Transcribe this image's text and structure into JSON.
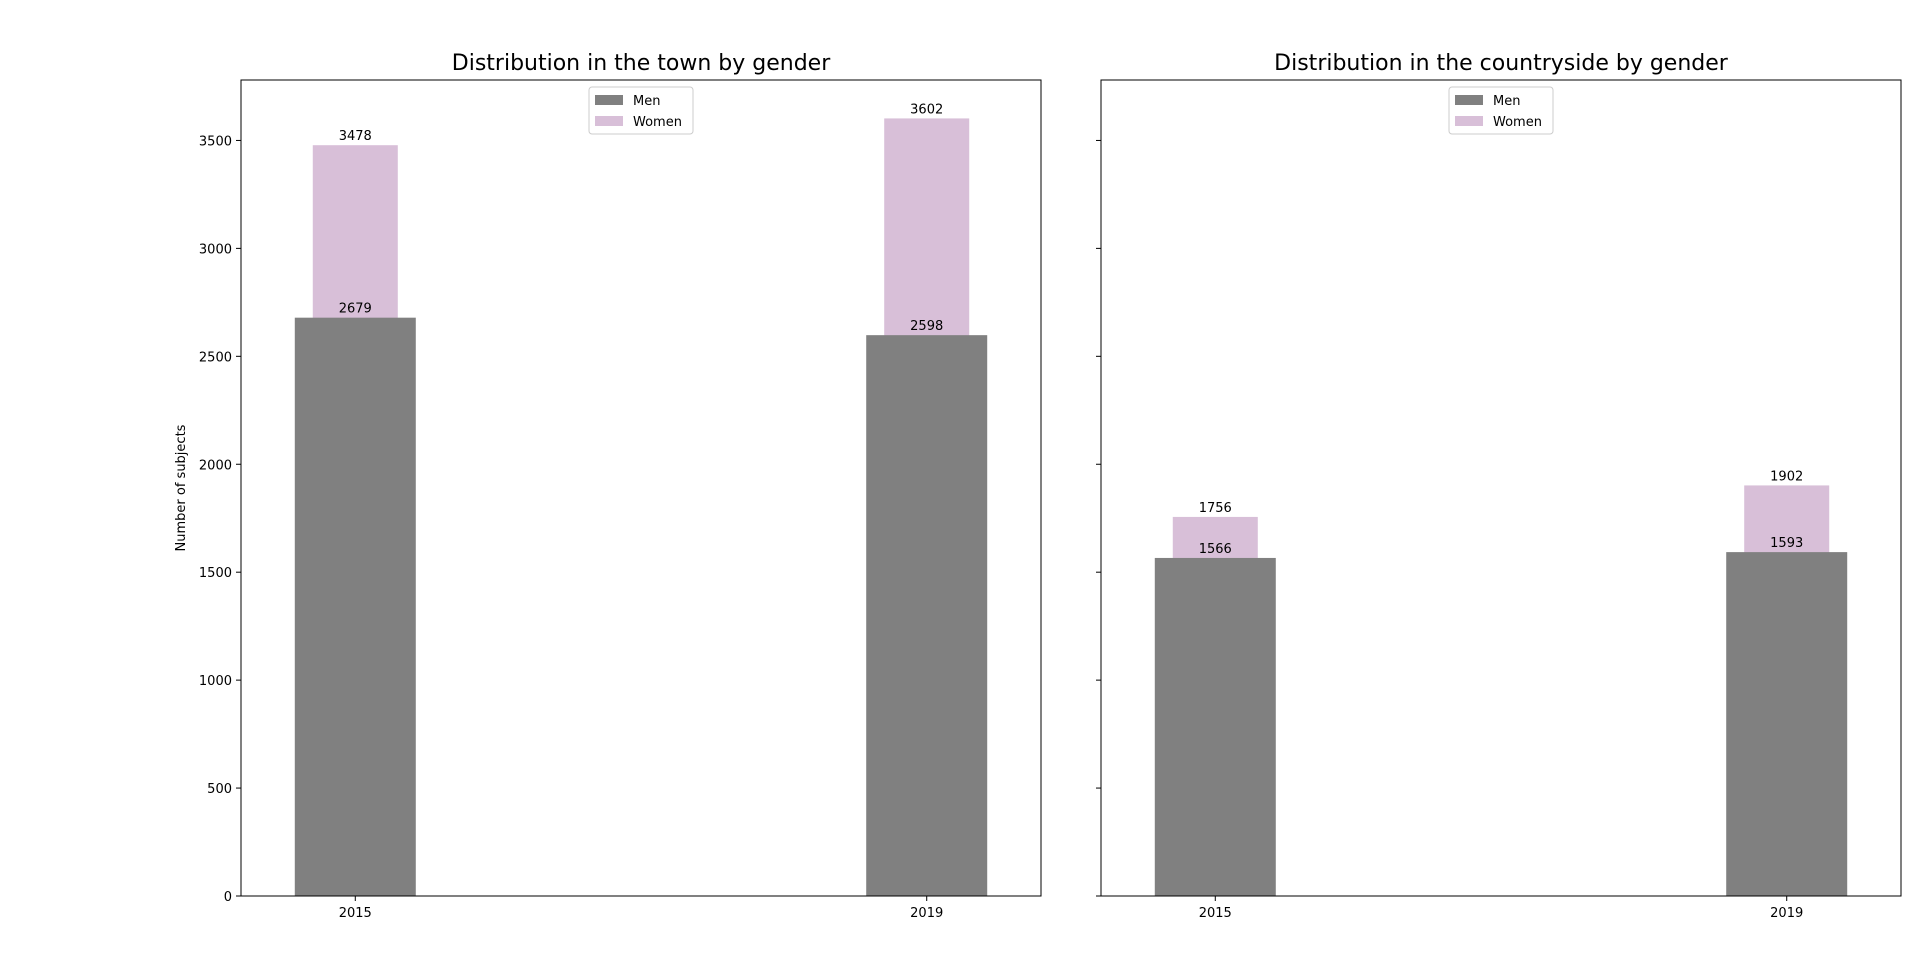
{
  "chart_data": [
    {
      "type": "bar",
      "title": "Distribution in the town by gender",
      "ylabel": "Number of subjects",
      "xlabel": "",
      "categories": [
        "2015",
        "2019"
      ],
      "ylim": [
        0,
        3780
      ],
      "yticks": [
        0,
        500,
        1000,
        1500,
        2000,
        2500,
        3000,
        3500
      ],
      "series": [
        {
          "name": "Men",
          "values": [
            2679,
            2598
          ],
          "color": "#808080"
        },
        {
          "name": "Women",
          "values": [
            3478,
            3602
          ],
          "color": "#d8bfd8"
        }
      ],
      "legend": "upper-center",
      "grid": false
    },
    {
      "type": "bar",
      "title": "Distribution in the countryside by gender",
      "ylabel": "",
      "xlabel": "",
      "categories": [
        "2015",
        "2019"
      ],
      "ylim": [
        0,
        3780
      ],
      "yticks": [
        0,
        500,
        1000,
        1500,
        2000,
        2500,
        3000,
        3500
      ],
      "shared_y": true,
      "series": [
        {
          "name": "Men",
          "values": [
            1566,
            1593
          ],
          "color": "#808080"
        },
        {
          "name": "Women",
          "values": [
            1756,
            1902
          ],
          "color": "#d8bfd8"
        }
      ],
      "legend": "upper-center",
      "grid": false
    }
  ]
}
